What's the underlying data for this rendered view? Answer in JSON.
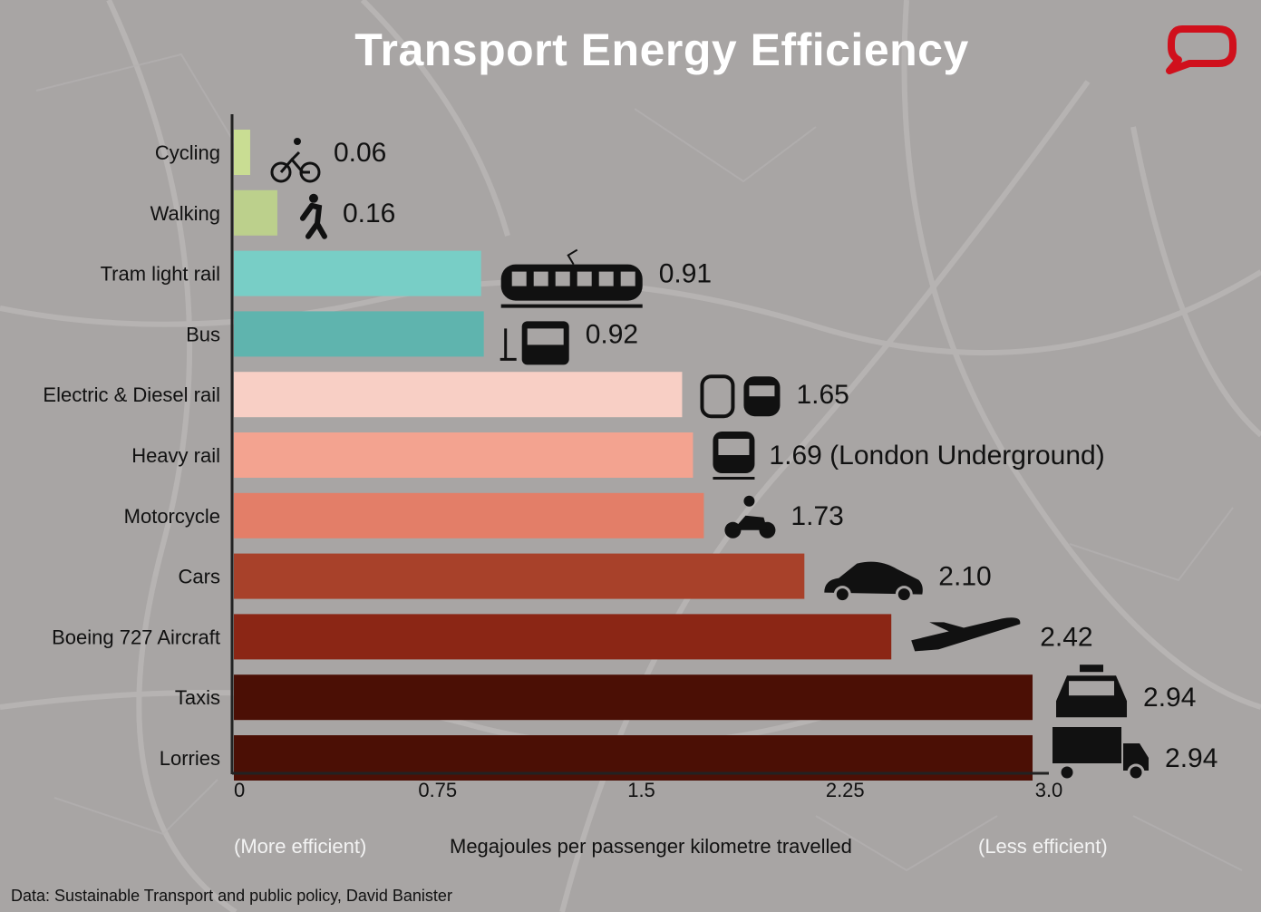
{
  "chart_data": {
    "type": "bar",
    "orientation": "horizontal",
    "title": "Transport Energy Efficiency",
    "categories": [
      "Cycling",
      "Walking",
      "Tram light rail",
      "Bus",
      "Electric & Diesel rail",
      "Heavy rail",
      "Motorcycle",
      "Cars",
      "Boeing 727 Aircraft",
      "Taxis",
      "Lorries"
    ],
    "values": [
      0.06,
      0.16,
      0.91,
      0.92,
      1.65,
      1.69,
      1.73,
      2.1,
      2.42,
      2.94,
      2.94
    ],
    "data_labels": [
      "0.06",
      "0.16",
      "0.91",
      "0.92",
      "1.65",
      "1.69 (London Underground)",
      "1.73",
      "2.10",
      "2.42",
      "2.94",
      "2.94"
    ],
    "colors": [
      "#c9dd93",
      "#bcd08c",
      "#78cec6",
      "#5fb4ae",
      "#f8cfc5",
      "#f3a390",
      "#e37e68",
      "#a8412a",
      "#8b2615",
      "#4b0f05",
      "#4b0f05"
    ],
    "icons": [
      "bicycle-icon",
      "walking-person-icon",
      "tram-icon",
      "bus-icon",
      "train-icon",
      "underground-train-icon",
      "motorcycle-icon",
      "car-icon",
      "airplane-icon",
      "taxi-icon",
      "lorry-icon"
    ],
    "xlim": [
      0,
      3.0
    ],
    "xticks": [
      "0",
      "0.75",
      "1.5",
      "2.25",
      "3.0"
    ],
    "xtick_values": [
      0,
      0.75,
      1.5,
      2.25,
      3.0
    ],
    "xlabel": "Megajoules per passenger kilometre travelled",
    "x_left_note": "(More efficient)",
    "x_right_note": "(Less efficient)",
    "grid": false,
    "legend": "none"
  },
  "source": "Data: Sustainable Transport and public policy, David Banister",
  "logo": {
    "name": "speech-bubble-logo",
    "color": "#d0101c"
  }
}
